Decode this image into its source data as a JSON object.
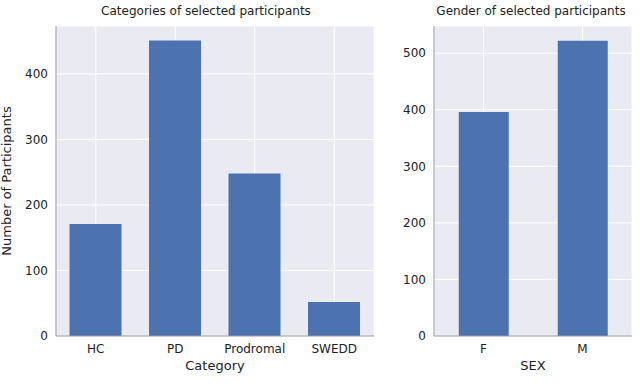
{
  "chart_data": [
    {
      "type": "bar",
      "title": "Categories of selected participants",
      "x_label": "Category",
      "y_label": "Number of Participants",
      "categories": [
        "HC",
        "PD",
        "Prodromal",
        "SWEDD"
      ],
      "values": [
        171,
        451,
        248,
        52
      ],
      "color": "#4c72b0",
      "ylim": [
        0,
        473
      ],
      "yticks": [
        0,
        100,
        200,
        300,
        400
      ],
      "grid": true
    },
    {
      "type": "bar",
      "title": "Gender of selected participants",
      "x_label": "SEX",
      "categories": [
        "F",
        "M"
      ],
      "values": [
        396,
        522
      ],
      "color": "#4c72b0",
      "ylim": [
        0,
        548
      ],
      "yticks": [
        0,
        100,
        200,
        300,
        400,
        500
      ],
      "grid": true
    }
  ]
}
